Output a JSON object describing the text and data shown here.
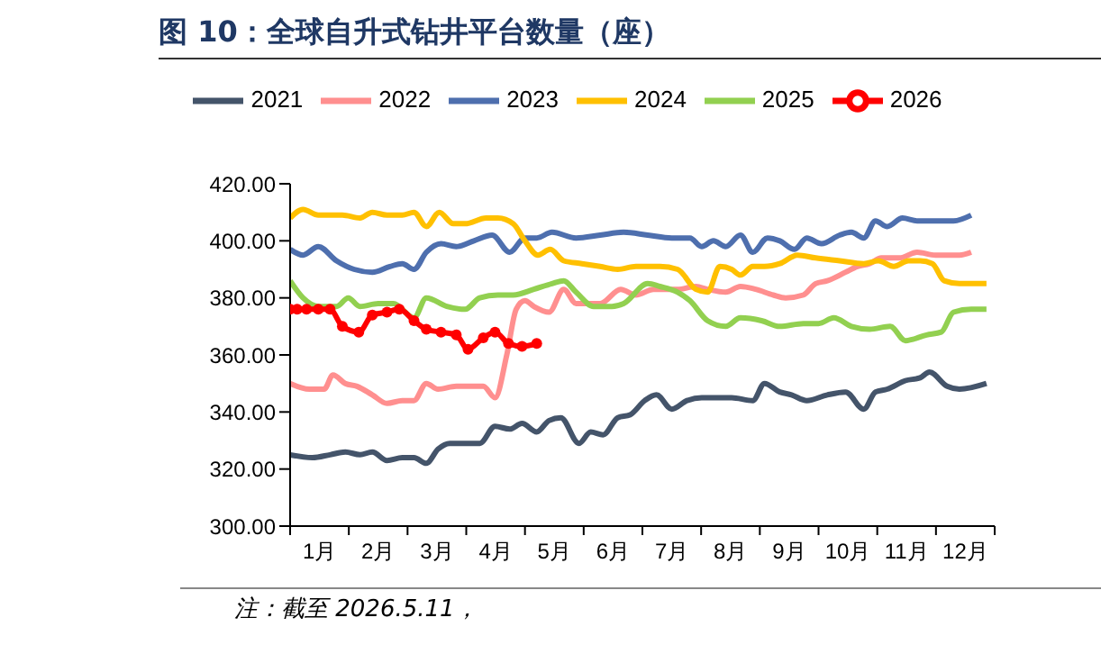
{
  "chart_data": {
    "type": "line",
    "title": "图 10：全球自升式钻井平台数量（座）",
    "annotations": [
      "注：截至 2026.5.11，"
    ],
    "xlim": [
      0,
      12
    ],
    "xticks": [
      {
        "value": 0,
        "label": null
      },
      {
        "value": 0.5,
        "label": "1月"
      },
      {
        "value": 1,
        "label": null
      },
      {
        "value": 1.5,
        "label": "2月"
      },
      {
        "value": 2,
        "label": null
      },
      {
        "value": 2.5,
        "label": "3月"
      },
      {
        "value": 3,
        "label": null
      },
      {
        "value": 3.5,
        "label": "4月"
      },
      {
        "value": 4,
        "label": null
      },
      {
        "value": 4.5,
        "label": "5月"
      },
      {
        "value": 5,
        "label": null
      },
      {
        "value": 5.5,
        "label": "6月"
      },
      {
        "value": 6,
        "label": null
      },
      {
        "value": 6.5,
        "label": "7月"
      },
      {
        "value": 7,
        "label": null
      },
      {
        "value": 7.5,
        "label": "8月"
      },
      {
        "value": 8,
        "label": null
      },
      {
        "value": 8.5,
        "label": "9月"
      },
      {
        "value": 9,
        "label": null
      },
      {
        "value": 9.5,
        "label": "10月"
      },
      {
        "value": 10,
        "label": null
      },
      {
        "value": 10.5,
        "label": "11月"
      },
      {
        "value": 11,
        "label": null
      },
      {
        "value": 11.5,
        "label": "12月"
      },
      {
        "value": 12,
        "label": null
      }
    ],
    "ylim": [
      300,
      420
    ],
    "yticks": [
      {
        "value": 300,
        "label": "300.00"
      },
      {
        "value": 320,
        "label": "320.00"
      },
      {
        "value": 340,
        "label": "340.00"
      },
      {
        "value": 360,
        "label": "360.00"
      },
      {
        "value": 380,
        "label": "380.00"
      },
      {
        "value": 400,
        "label": "400.00"
      },
      {
        "value": 420,
        "label": "420.00"
      }
    ],
    "legend": "top",
    "line_style": "solid",
    "series": [
      {
        "name": "2021",
        "color": "#44546a",
        "marker": "none",
        "x": [
          0,
          0.38,
          0.68,
          0.94,
          1.19,
          1.4,
          1.65,
          1.91,
          2.11,
          2.32,
          2.52,
          2.72,
          2.98,
          3.23,
          3.49,
          3.74,
          3.95,
          4.2,
          4.41,
          4.61,
          4.92,
          5.12,
          5.33,
          5.58,
          5.79,
          6.04,
          6.24,
          6.5,
          6.76,
          7.01,
          7.52,
          7.88,
          8.08,
          8.34,
          8.54,
          8.8,
          9.15,
          9.46,
          9.77,
          9.97,
          10.17,
          10.48,
          10.73,
          10.89,
          11.19,
          11.4,
          11.86
        ],
        "values": [
          325,
          324,
          325,
          326,
          325,
          326,
          323,
          324,
          324,
          322,
          327,
          329,
          329,
          329,
          335,
          334,
          336,
          333,
          337,
          338,
          329,
          333,
          332,
          338,
          339,
          344,
          346,
          341,
          344,
          345,
          345,
          344,
          350,
          347,
          346,
          344,
          346,
          347,
          341,
          347,
          348,
          351,
          352,
          354,
          349,
          348,
          350
        ]
      },
      {
        "name": "2022",
        "color": "#ff8f8f",
        "marker": "none",
        "x": [
          0,
          0.33,
          0.58,
          0.73,
          0.94,
          1.14,
          1.4,
          1.65,
          1.91,
          2.11,
          2.32,
          2.52,
          2.83,
          3.08,
          3.29,
          3.49,
          3.69,
          3.85,
          4.0,
          4.15,
          4.41,
          4.66,
          4.87,
          5.28,
          5.63,
          5.89,
          6.19,
          6.6,
          6.91,
          7.11,
          7.42,
          7.67,
          7.93,
          8.23,
          8.44,
          8.74,
          8.95,
          9.15,
          9.46,
          9.66,
          9.87,
          10.07,
          10.38,
          10.68,
          10.99,
          11.4,
          11.6
        ],
        "values": [
          350,
          348,
          348,
          353,
          350,
          349,
          346,
          343,
          344,
          344,
          350,
          348,
          349,
          349,
          349,
          345,
          360,
          376,
          379,
          377,
          375,
          383,
          378,
          378,
          383,
          381,
          383,
          383,
          384,
          383,
          382,
          384,
          383,
          381,
          380,
          381,
          385,
          386,
          389,
          391,
          392,
          394,
          394,
          396,
          395,
          395,
          396
        ]
      },
      {
        "name": "2023",
        "color": "#4e6fae",
        "marker": "none",
        "x": [
          0,
          0.22,
          0.48,
          0.79,
          1.09,
          1.4,
          1.7,
          1.91,
          2.11,
          2.32,
          2.57,
          2.83,
          3.13,
          3.44,
          3.74,
          4.0,
          4.2,
          4.46,
          4.87,
          5.28,
          5.68,
          6.09,
          6.5,
          6.81,
          7.01,
          7.21,
          7.42,
          7.67,
          7.88,
          8.13,
          8.34,
          8.59,
          8.8,
          9.05,
          9.36,
          9.56,
          9.77,
          9.97,
          10.17,
          10.43,
          10.68,
          11.3,
          11.6
        ],
        "values": [
          397,
          395,
          398,
          393,
          390,
          389,
          391,
          392,
          390,
          396,
          399,
          398,
          400,
          402,
          396,
          401,
          401,
          403,
          401,
          402,
          403,
          402,
          401,
          401,
          398,
          400,
          398,
          402,
          396,
          401,
          400,
          397,
          401,
          399,
          402,
          403,
          401,
          407,
          405,
          408,
          407,
          407,
          409
        ]
      },
      {
        "name": "2024",
        "color": "#ffc000",
        "marker": "none",
        "x": [
          0,
          0.22,
          0.48,
          0.89,
          1.19,
          1.4,
          1.65,
          1.91,
          2.11,
          2.32,
          2.54,
          2.78,
          2.98,
          3.34,
          3.54,
          3.8,
          4.0,
          4.22,
          4.43,
          4.66,
          4.97,
          5.28,
          5.58,
          5.89,
          6.3,
          6.6,
          6.91,
          7.11,
          7.32,
          7.52,
          7.67,
          7.88,
          8.08,
          8.34,
          8.64,
          8.95,
          9.36,
          9.77,
          10.02,
          10.28,
          10.53,
          10.73,
          10.94,
          11.14,
          11.4,
          11.86
        ],
        "values": [
          408,
          411,
          409,
          409,
          408,
          410,
          409,
          409,
          410,
          405,
          410,
          406,
          406,
          408,
          408,
          406,
          400,
          395,
          397,
          393,
          392,
          391,
          390,
          391,
          391,
          390,
          383,
          382,
          391,
          390,
          388,
          391,
          391,
          392,
          395,
          394,
          393,
          392,
          393,
          391,
          393,
          393,
          392,
          386,
          385,
          385
        ]
      },
      {
        "name": "2025",
        "color": "#92d050",
        "marker": "none",
        "x": [
          0,
          0.22,
          0.48,
          0.79,
          0.99,
          1.19,
          1.5,
          1.76,
          2.11,
          2.32,
          2.67,
          2.98,
          3.23,
          3.54,
          3.8,
          4.15,
          4.46,
          4.66,
          4.87,
          5.17,
          5.48,
          5.68,
          6.09,
          6.3,
          6.6,
          6.81,
          7.11,
          7.42,
          7.67,
          8.03,
          8.34,
          8.74,
          9.0,
          9.26,
          9.56,
          9.87,
          10.22,
          10.48,
          10.84,
          11.09,
          11.3,
          11.6,
          11.86
        ],
        "values": [
          386,
          380,
          377,
          377,
          380,
          377,
          378,
          378,
          373,
          380,
          377,
          376,
          380,
          381,
          381,
          383,
          385,
          386,
          382,
          377,
          377,
          378,
          385,
          384,
          382,
          379,
          372,
          370,
          373,
          372,
          370,
          371,
          371,
          373,
          370,
          369,
          370,
          365,
          367,
          368,
          375,
          376,
          376
        ]
      },
      {
        "name": "2026",
        "color": "#ff0000",
        "marker": "circle",
        "x": [
          0,
          0.12,
          0.28,
          0.48,
          0.68,
          0.89,
          1.17,
          1.4,
          1.65,
          1.86,
          2.11,
          2.32,
          2.57,
          2.83,
          3.03,
          3.29,
          3.49,
          3.72,
          3.95,
          4.2
        ],
        "values": [
          376,
          376,
          376,
          376,
          376,
          370,
          368,
          374,
          375,
          376,
          372,
          369,
          368,
          367,
          362,
          366,
          368,
          364,
          363,
          364
        ]
      }
    ]
  }
}
